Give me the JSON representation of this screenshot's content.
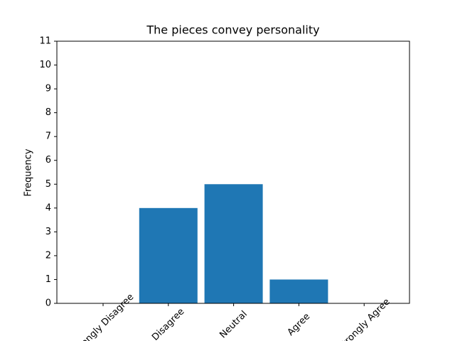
{
  "chart_data": {
    "type": "bar",
    "title": "The pieces convey personality",
    "y_label": "Frequency",
    "categories": [
      "Strongly Disagree",
      "Disagree",
      "Neutral",
      "Agree",
      "Strongly Agree"
    ],
    "values": [
      0,
      4,
      5,
      1,
      0
    ],
    "color": "#1f77b4",
    "ylim": [
      0,
      11
    ],
    "yticks": [
      0,
      1,
      2,
      3,
      4,
      5,
      6,
      7,
      8,
      9,
      10,
      11
    ]
  }
}
